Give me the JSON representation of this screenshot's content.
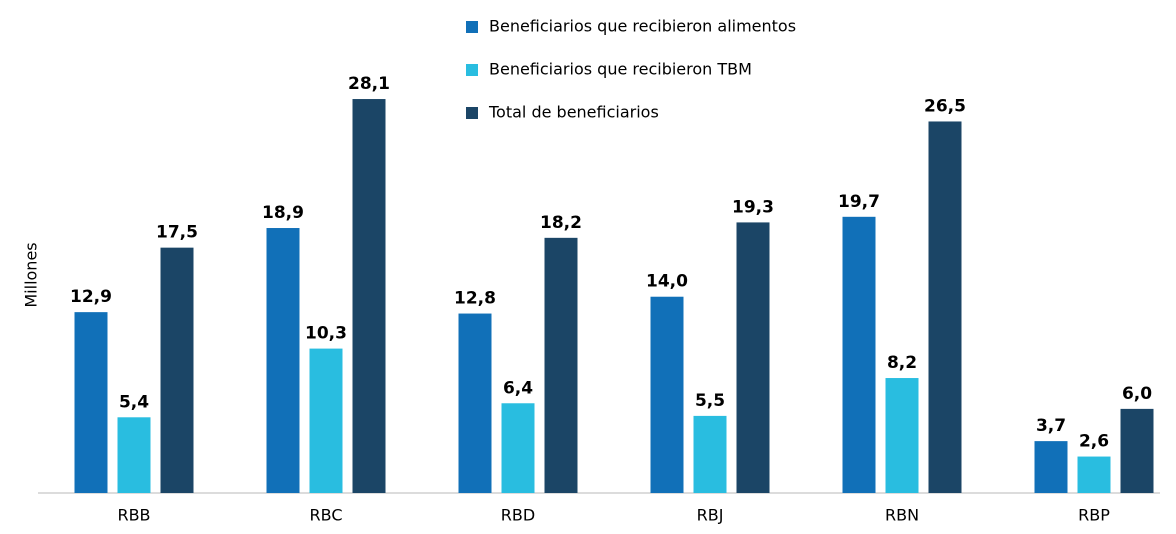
{
  "chart_data": {
    "type": "bar",
    "y_label": "Millones",
    "categories": [
      "RBB",
      "RBC",
      "RBD",
      "RBJ",
      "RBN",
      "RBP"
    ],
    "series": [
      {
        "name": "Beneficiarios que recibieron alimentos",
        "color": "#1170b8",
        "values": [
          12.9,
          18.9,
          12.8,
          14.0,
          19.7,
          3.7
        ],
        "value_labels": [
          "12,9",
          "18,9",
          "12,8",
          "14,0",
          "19,7",
          "3,7"
        ]
      },
      {
        "name": "Beneficiarios que recibieron TBM",
        "color": "#29bde0",
        "values": [
          5.4,
          10.3,
          6.4,
          5.5,
          8.2,
          2.6
        ],
        "value_labels": [
          "5,4",
          "10,3",
          "6,4",
          "5,5",
          "8,2",
          "2,6"
        ]
      },
      {
        "name": "Total de beneficiarios",
        "color": "#1b4566",
        "values": [
          17.5,
          28.1,
          18.2,
          19.3,
          26.5,
          6.0
        ],
        "value_labels": [
          "17,5",
          "28,1",
          "18,2",
          "19,3",
          "26,5",
          "6,0"
        ]
      }
    ],
    "ylim": [
      0,
      30
    ],
    "legend": "top"
  }
}
